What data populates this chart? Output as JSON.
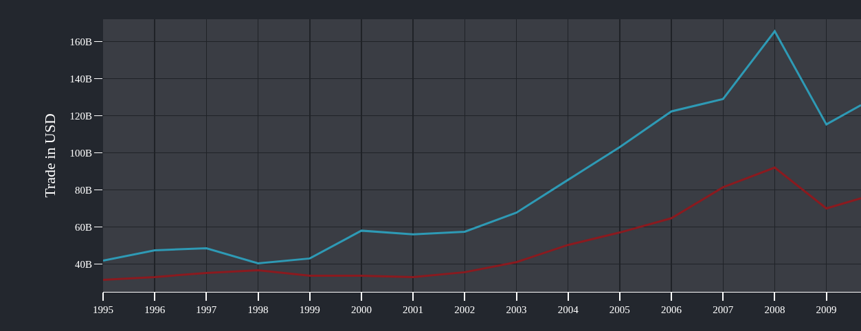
{
  "chart_data": {
    "type": "line",
    "ylabel": "Trade in USD",
    "x": [
      1995,
      1996,
      1997,
      1998,
      1999,
      2000,
      2001,
      2002,
      2003,
      2004,
      2005,
      2006,
      2007,
      2008,
      2009,
      2009.67
    ],
    "series": [
      {
        "color": "#2e9ab5",
        "values": [
          41.8,
          47.4,
          48.5,
          40.4,
          43,
          58,
          56,
          57.4,
          67.7,
          85.4,
          103,
          122.3,
          129,
          165.5,
          115.3,
          125.7
        ]
      },
      {
        "color": "#8b1a1f",
        "values": [
          31.5,
          33,
          35.2,
          36.7,
          33.7,
          33.7,
          33,
          35.6,
          41,
          50.3,
          57,
          64.7,
          81.4,
          92,
          70,
          75.5
        ]
      }
    ],
    "xlim": [
      1995,
      2009.67
    ],
    "xticks": [
      1995,
      1996,
      1997,
      1998,
      1999,
      2000,
      2001,
      2002,
      2003,
      2004,
      2005,
      2006,
      2007,
      2008,
      2009
    ],
    "ylim": [
      25,
      172
    ],
    "yticks": [
      {
        "value": 40,
        "label": "40B"
      },
      {
        "value": 60,
        "label": "60B"
      },
      {
        "value": 80,
        "label": "80B"
      },
      {
        "value": 100,
        "label": "100B"
      },
      {
        "value": 120,
        "label": "120B"
      },
      {
        "value": 140,
        "label": "140B"
      },
      {
        "value": 160,
        "label": "160B"
      }
    ],
    "grid": true,
    "marker": "none",
    "line_style": "solid"
  }
}
